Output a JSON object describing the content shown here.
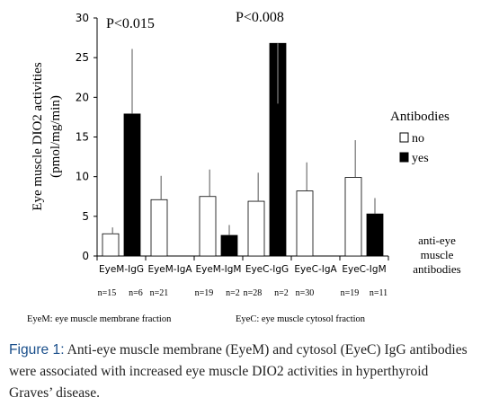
{
  "chart_data": {
    "type": "bar",
    "title": "",
    "ylabel_line1": "Eye muscle DIO2 activities",
    "ylabel_line2": "(pmol/mg/min)",
    "ylim": [
      0,
      30
    ],
    "yticks": [
      "0",
      "5",
      "10",
      "15",
      "20",
      "25",
      "30"
    ],
    "categories": [
      "EyeM-IgG",
      "EyeM-IgA",
      "EyeM-IgM",
      "EyeC-IgG",
      "EyeC-IgA",
      "EyeC-IgM"
    ],
    "n_labels": [
      [
        "n=15",
        "n=6"
      ],
      [
        "n=21"
      ],
      [
        "n=19",
        "n=2"
      ],
      [
        "n=28",
        "n=2"
      ],
      [
        "n=30"
      ],
      [
        "n=19",
        "n=11"
      ]
    ],
    "series": [
      {
        "name": "no",
        "color": "#ffffff",
        "values": [
          2.8,
          7.1,
          7.5,
          6.9,
          8.2,
          9.9
        ],
        "errors": [
          0.8,
          3.0,
          3.4,
          3.6,
          3.6,
          4.7
        ]
      },
      {
        "name": "yes",
        "color": "#000000",
        "values": [
          17.9,
          null,
          2.6,
          26.8,
          null,
          5.3
        ],
        "errors": [
          8.2,
          null,
          1.3,
          0,
          null,
          2.0
        ]
      }
    ],
    "yes_low_errors": [
      null,
      null,
      null,
      19.2,
      null,
      null
    ],
    "legend_title": "Antibodies",
    "legend_placement": "right",
    "annotations": [
      {
        "text": "P<0.015",
        "category": "EyeM-IgG"
      },
      {
        "text": "P<0.008",
        "category": "EyeC-IgG"
      }
    ],
    "side_label": [
      "anti-eye",
      "muscle",
      "antibodies"
    ],
    "footnote_left": "EyeM: eye muscle membrane fraction",
    "footnote_right": "EyeC: eye muscle cytosol fraction",
    "grid": false
  },
  "caption": {
    "label": "Figure 1:",
    "text": " Anti-eye muscle membrane (EyeM) and cytosol (EyeC) IgG antibodies were associated with increased eye muscle DIO2 activities in hyperthyroid Graves’ disease."
  }
}
